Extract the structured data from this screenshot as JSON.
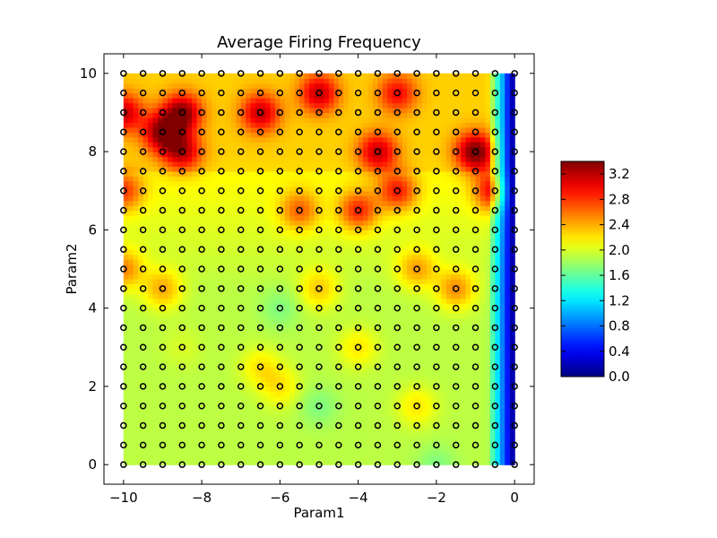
{
  "chart_data": {
    "type": "heatmap",
    "title": "Average Firing Frequency",
    "xlabel": "Param1",
    "ylabel": "Param2",
    "xlim": [
      -10.5,
      0.5
    ],
    "ylim": [
      -0.5,
      10.5
    ],
    "xticks": [
      -10,
      -8,
      -6,
      -4,
      -2,
      0
    ],
    "yticks": [
      0,
      2,
      4,
      6,
      8,
      10
    ],
    "grid": false,
    "colormap": "jet",
    "colorbar": {
      "min": 0.0,
      "max": 3.4,
      "ticks": [
        0.0,
        0.4,
        0.8,
        1.2,
        1.6,
        2.0,
        2.4,
        2.8,
        3.2
      ],
      "tick_labels": [
        "0.0",
        "0.4",
        "0.8",
        "1.2",
        "1.6",
        "2.0",
        "2.4",
        "2.8",
        "3.2"
      ]
    },
    "sample_points": {
      "x_start": -10,
      "x_stop": 0,
      "x_step": 0.5,
      "y_start": 0,
      "y_stop": 10,
      "y_step": 0.5,
      "marker": "circle-open",
      "marker_color": "#000000"
    },
    "hotspots": [
      {
        "x": -9.0,
        "y": 8.5,
        "value": 3.0
      },
      {
        "x": -8.5,
        "y": 9.0,
        "value": 3.0
      },
      {
        "x": -8.5,
        "y": 8.0,
        "value": 2.8
      },
      {
        "x": -6.5,
        "y": 9.0,
        "value": 2.8
      },
      {
        "x": -10.0,
        "y": 9.0,
        "value": 2.8
      },
      {
        "x": -5.0,
        "y": 9.5,
        "value": 2.8
      },
      {
        "x": -3.0,
        "y": 9.5,
        "value": 2.6
      },
      {
        "x": -3.5,
        "y": 8.0,
        "value": 2.8
      },
      {
        "x": -1.0,
        "y": 8.0,
        "value": 3.1
      },
      {
        "x": -0.5,
        "y": 7.0,
        "value": 2.9
      },
      {
        "x": -3.0,
        "y": 7.0,
        "value": 2.7
      },
      {
        "x": -4.0,
        "y": 6.5,
        "value": 2.7
      },
      {
        "x": -5.5,
        "y": 6.5,
        "value": 2.5
      },
      {
        "x": -10.0,
        "y": 7.0,
        "value": 2.6
      },
      {
        "x": -10.0,
        "y": 5.0,
        "value": 2.5
      },
      {
        "x": -9.0,
        "y": 4.5,
        "value": 2.4
      },
      {
        "x": -1.5,
        "y": 4.5,
        "value": 2.5
      },
      {
        "x": -2.5,
        "y": 5.0,
        "value": 2.4
      },
      {
        "x": -5.0,
        "y": 4.5,
        "value": 2.3
      },
      {
        "x": -6.5,
        "y": 2.5,
        "value": 2.2
      },
      {
        "x": -6.0,
        "y": 2.0,
        "value": 2.2
      },
      {
        "x": -4.0,
        "y": 3.0,
        "value": 2.2
      },
      {
        "x": -2.5,
        "y": 1.5,
        "value": 2.2
      },
      {
        "x": -8.5,
        "y": 3.0,
        "value": 2.0
      },
      {
        "x": -6.0,
        "y": 4.0,
        "value": 1.7
      },
      {
        "x": -5.0,
        "y": 1.5,
        "value": 1.7
      },
      {
        "x": -2.0,
        "y": 0.0,
        "value": 1.7
      },
      {
        "x": -7.5,
        "y": 5.5,
        "value": 1.9
      },
      {
        "x": -1.5,
        "y": 2.0,
        "value": 1.9
      }
    ]
  }
}
